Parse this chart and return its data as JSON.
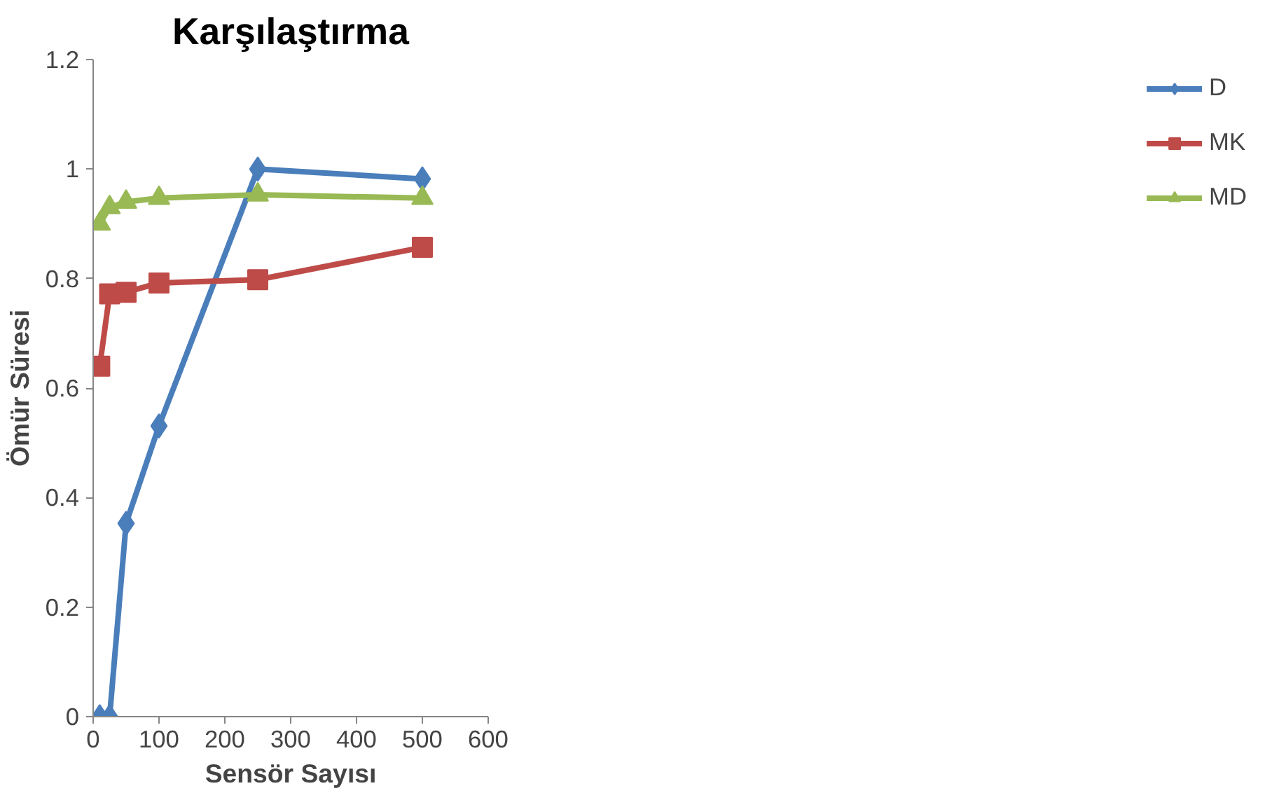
{
  "chart_data": {
    "type": "line",
    "title": "Karşılaştırma",
    "xlabel": "Sensör Sayısı",
    "ylabel": "Ömür Süresi",
    "x": [
      10,
      25,
      50,
      100,
      250,
      500
    ],
    "series": [
      {
        "name": "D",
        "color": "#4a7ebb",
        "marker": "diamond",
        "values": [
          0,
          0,
          0.353,
          0.531,
          1.0,
          0.982
        ]
      },
      {
        "name": "MK",
        "color": "#be4b48",
        "marker": "square",
        "values": [
          0.64,
          0.772,
          0.775,
          0.792,
          0.798,
          0.857
        ]
      },
      {
        "name": "MD",
        "color": "#98b954",
        "marker": "triangle",
        "values": [
          0.9,
          0.93,
          0.94,
          0.947,
          0.953,
          0.947
        ]
      }
    ],
    "xlim": [
      0,
      600
    ],
    "xticks": [
      0,
      100,
      200,
      300,
      400,
      500,
      600
    ],
    "ylim": [
      0,
      1.2
    ],
    "yticks": [
      0,
      0.2,
      0.4,
      0.6,
      0.8,
      1,
      1.2
    ],
    "grid": false,
    "legend": "right",
    "line_style": "solid"
  }
}
